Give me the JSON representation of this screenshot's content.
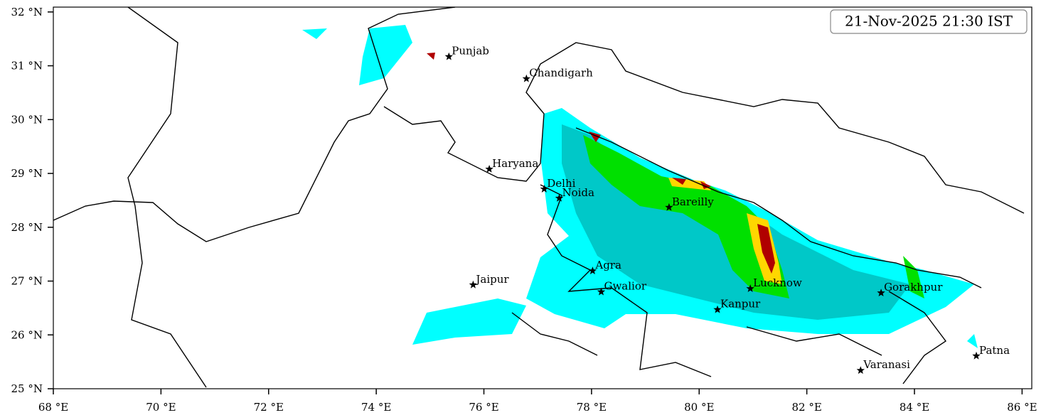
{
  "map": {
    "title": "21-Nov-2025 21:30 IST",
    "xlim": [
      68,
      86.18
    ],
    "ylim": [
      25,
      32.09
    ],
    "xticks": [
      {
        "value": 68,
        "label": "68 °E"
      },
      {
        "value": 70,
        "label": "70 °E"
      },
      {
        "value": 72,
        "label": "72 °E"
      },
      {
        "value": 74,
        "label": "74 °E"
      },
      {
        "value": 76,
        "label": "76 °E"
      },
      {
        "value": 78,
        "label": "78 °E"
      },
      {
        "value": 80,
        "label": "80 °E"
      },
      {
        "value": 82,
        "label": "82 °E"
      },
      {
        "value": 84,
        "label": "84 °E"
      },
      {
        "value": 86,
        "label": "86 °E"
      }
    ],
    "yticks": [
      {
        "value": 25,
        "label": "25 °N"
      },
      {
        "value": 26,
        "label": "26 °N"
      },
      {
        "value": 27,
        "label": "27 °N"
      },
      {
        "value": 28,
        "label": "28 °N"
      },
      {
        "value": 29,
        "label": "29 °N"
      },
      {
        "value": 30,
        "label": "30 °N"
      },
      {
        "value": 31,
        "label": "31 °N"
      },
      {
        "value": 32,
        "label": "32 °N"
      }
    ],
    "cities": [
      {
        "label": "Punjab",
        "lon": 75.35,
        "lat": 31.17
      },
      {
        "label": "Chandigarh",
        "lon": 76.79,
        "lat": 30.76
      },
      {
        "label": "Haryana",
        "lon": 76.1,
        "lat": 29.08
      },
      {
        "label": "Delhi",
        "lon": 77.12,
        "lat": 28.71
      },
      {
        "label": "Noida",
        "lon": 77.4,
        "lat": 28.54
      },
      {
        "label": "Bareilly",
        "lon": 79.44,
        "lat": 28.37
      },
      {
        "label": "Agra",
        "lon": 78.02,
        "lat": 27.19
      },
      {
        "label": "Gwalior",
        "lon": 78.18,
        "lat": 26.8
      },
      {
        "label": "Jaipur",
        "lon": 75.8,
        "lat": 26.93
      },
      {
        "label": "Lucknow",
        "lon": 80.95,
        "lat": 26.86
      },
      {
        "label": "Kanpur",
        "lon": 80.34,
        "lat": 26.47
      },
      {
        "label": "Gorakhpur",
        "lon": 83.38,
        "lat": 26.78
      },
      {
        "label": "Varanasi",
        "lon": 83.0,
        "lat": 25.34
      },
      {
        "label": "Patna",
        "lon": 85.15,
        "lat": 25.61
      }
    ]
  }
}
